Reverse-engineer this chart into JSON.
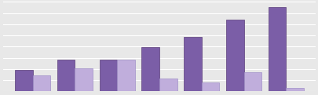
{
  "pctpu": [
    2.0,
    3.0,
    3.0,
    4.2,
    5.2,
    6.8,
    8.0
  ],
  "pctpz": [
    1.5,
    2.2,
    3.0,
    1.2,
    0.8,
    1.8,
    0.3
  ],
  "color_pu": "#7B5EA7",
  "color_pz": "#C0AEDC",
  "color_pu_edge": "#5a3d7a",
  "color_pz_edge": "#a090c8",
  "background": "#E8E8E8",
  "ylim_max": 8.5,
  "bar_width": 0.42,
  "group_count": 7,
  "grid_color": "#FFFFFF",
  "grid_count": 9,
  "fig_width": 4.06,
  "fig_height": 1.21
}
